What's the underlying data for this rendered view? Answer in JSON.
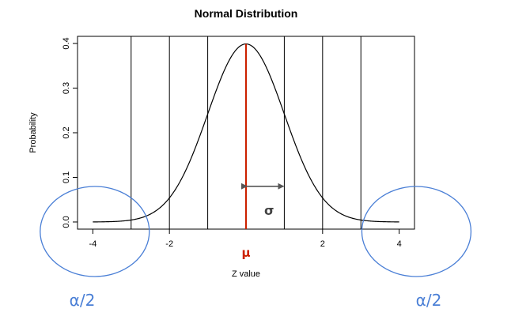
{
  "chart_data": {
    "type": "line",
    "title": "Normal Distribution",
    "xlabel": "Z value",
    "ylabel": "Probability",
    "xlim": [
      -4.4,
      4.4
    ],
    "ylim": [
      -0.016,
      0.416
    ],
    "x_ticks": [
      -4,
      -2,
      2,
      4
    ],
    "x_tick_labels": [
      "-4",
      "-2",
      "2",
      "4"
    ],
    "y_ticks": [
      0.0,
      0.1,
      0.2,
      0.3,
      0.4
    ],
    "y_tick_labels": [
      "0.0",
      "0.1",
      "0.2",
      "0.3",
      "0.4"
    ],
    "curve": {
      "mean": 0,
      "sd": 1,
      "x_from": -4,
      "x_to": 4,
      "color": "#000000"
    },
    "vertical_lines": [
      -3,
      -2,
      -1,
      1,
      2,
      3
    ],
    "mean_line": {
      "x": 0,
      "label": "μ",
      "color": "#cc2200"
    },
    "sigma_annotation": {
      "from": 0,
      "to": 1,
      "y": 0.08,
      "label": "σ",
      "color": "#555555"
    },
    "tail_regions": [
      {
        "side": "left",
        "center_x": -3.95,
        "center_y": 0.0,
        "label": "α/2"
      },
      {
        "side": "right",
        "center_x": 4.45,
        "center_y": 0.0,
        "label": "α/2"
      }
    ],
    "circle_color": "#4a7fd6",
    "alpha_label_color": "#4a7fd6"
  }
}
